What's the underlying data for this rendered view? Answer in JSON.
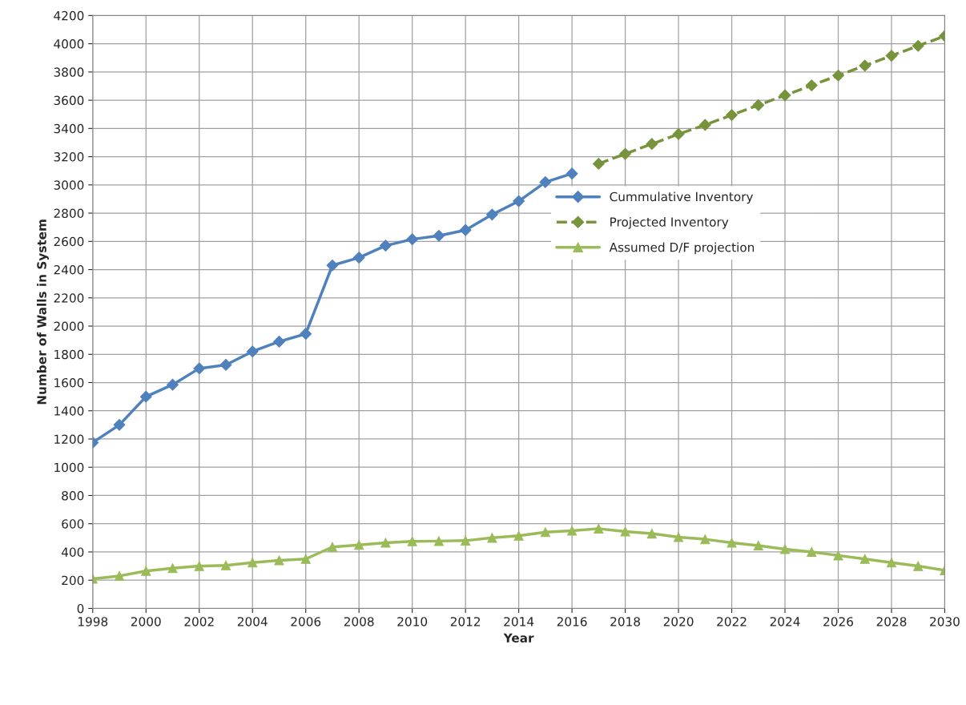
{
  "chart_data": {
    "type": "line",
    "xlabel": "Year",
    "ylabel": "Number of Walls in System",
    "xlim": [
      1998,
      2030
    ],
    "xticks": [
      1998,
      2000,
      2002,
      2004,
      2006,
      2008,
      2010,
      2012,
      2014,
      2016,
      2018,
      2020,
      2022,
      2024,
      2026,
      2028,
      2030
    ],
    "ylim": [
      0,
      4200
    ],
    "yticks": [
      0,
      200,
      400,
      600,
      800,
      1000,
      1200,
      1400,
      1600,
      1800,
      2000,
      2200,
      2400,
      2600,
      2800,
      3000,
      3200,
      3400,
      3600,
      3800,
      4000,
      4200
    ],
    "grid": true,
    "legend": "right",
    "series": [
      {
        "name": "Cummulative Inventory",
        "color": "#4f81bd",
        "marker": "diamond",
        "line_style": "solid",
        "x": [
          1998,
          1999,
          2000,
          2001,
          2002,
          2003,
          2004,
          2005,
          2006,
          2007,
          2008,
          2009,
          2010,
          2011,
          2012,
          2013,
          2014,
          2015,
          2016
        ],
        "values": [
          1175,
          1300,
          1500,
          1585,
          1700,
          1725,
          1820,
          1890,
          1945,
          2430,
          2485,
          2570,
          2615,
          2640,
          2680,
          2790,
          2885,
          3020,
          3080
        ]
      },
      {
        "name": "Projected Inventory",
        "color": "#77933c",
        "marker": "diamond",
        "line_style": "dashed",
        "x": [
          2017,
          2018,
          2019,
          2020,
          2021,
          2022,
          2023,
          2024,
          2025,
          2026,
          2027,
          2028,
          2029,
          2030
        ],
        "values": [
          3150,
          3220,
          3290,
          3360,
          3425,
          3495,
          3565,
          3635,
          3705,
          3775,
          3845,
          3915,
          3985,
          4055
        ]
      },
      {
        "name": "Assumed D/F projection",
        "color": "#9bbb59",
        "marker": "triangle",
        "line_style": "solid",
        "x": [
          1998,
          1999,
          2000,
          2001,
          2002,
          2003,
          2004,
          2005,
          2006,
          2007,
          2008,
          2009,
          2010,
          2011,
          2012,
          2013,
          2014,
          2015,
          2016,
          2017,
          2018,
          2019,
          2020,
          2021,
          2022,
          2023,
          2024,
          2025,
          2026,
          2027,
          2028,
          2029,
          2030
        ],
        "values": [
          210,
          230,
          265,
          285,
          300,
          305,
          325,
          340,
          350,
          435,
          450,
          465,
          475,
          477,
          480,
          500,
          515,
          540,
          550,
          565,
          545,
          530,
          505,
          490,
          465,
          445,
          420,
          400,
          375,
          350,
          325,
          300,
          270
        ]
      }
    ]
  }
}
